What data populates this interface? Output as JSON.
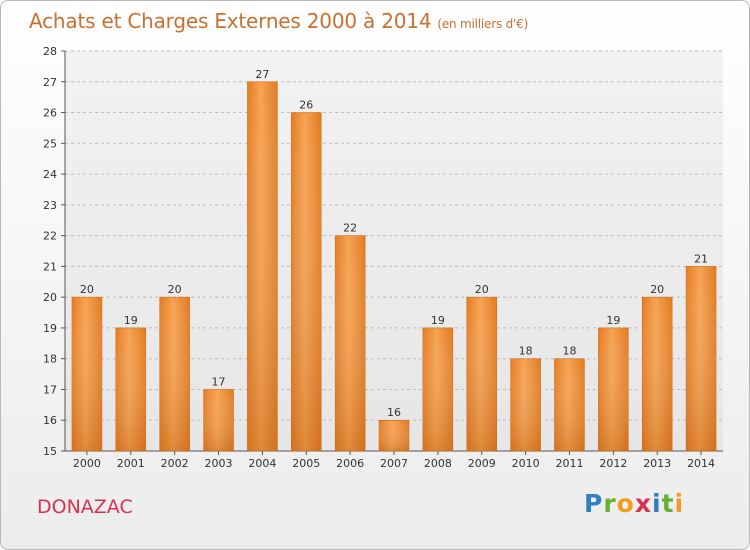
{
  "header": {
    "title": "Achats et Charges Externes 2000 à 2014",
    "unit": "(en milliers d'€)"
  },
  "footer": {
    "commune": "DONAZAC",
    "logo_letters": [
      "P",
      "r",
      "o",
      "x",
      "i",
      "t",
      "i"
    ],
    "logo_alt": "Proxiti"
  },
  "chart_data": {
    "type": "bar",
    "categories": [
      "2000",
      "2001",
      "2002",
      "2003",
      "2004",
      "2005",
      "2006",
      "2007",
      "2008",
      "2009",
      "2010",
      "2011",
      "2012",
      "2013",
      "2014"
    ],
    "values": [
      20,
      19,
      20,
      17,
      27,
      26,
      22,
      16,
      19,
      20,
      18,
      18,
      19,
      20,
      21
    ],
    "ylim": [
      15,
      28
    ],
    "yticks": [
      15,
      16,
      17,
      18,
      19,
      20,
      21,
      22,
      23,
      24,
      25,
      26,
      27,
      28
    ],
    "grid": "horizontal dashed",
    "bar_color": "#f08c2e",
    "bar_color_light": "#f7a95a",
    "bar_color_dark": "#d9731c",
    "label_color": "#333333"
  }
}
